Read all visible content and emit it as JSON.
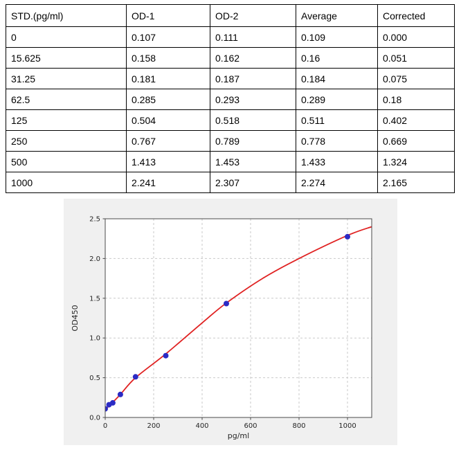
{
  "table": {
    "headers": [
      "STD.(pg/ml)",
      "OD-1",
      "OD-2",
      "Average",
      "Corrected"
    ],
    "rows": [
      [
        "0",
        "0.107",
        "0.111",
        "0.109",
        "0.000"
      ],
      [
        "15.625",
        "0.158",
        "0.162",
        "0.16",
        "0.051"
      ],
      [
        "31.25",
        "0.181",
        "0.187",
        "0.184",
        "0.075"
      ],
      [
        "62.5",
        "0.285",
        "0.293",
        "0.289",
        "0.18"
      ],
      [
        "125",
        "0.504",
        "0.518",
        "0.511",
        "0.402"
      ],
      [
        "250",
        "0.767",
        "0.789",
        "0.778",
        "0.669"
      ],
      [
        "500",
        "1.413",
        "1.453",
        "1.433",
        "1.324"
      ],
      [
        "1000",
        "2.241",
        "2.307",
        "2.274",
        "2.165"
      ]
    ]
  },
  "chart_data": {
    "type": "scatter",
    "title": "",
    "xlabel": "pg/ml",
    "ylabel": "OD450",
    "xlim": [
      0,
      1100
    ],
    "ylim": [
      0,
      2.5
    ],
    "x_ticks": [
      0,
      200,
      400,
      600,
      800,
      1000
    ],
    "y_ticks": [
      0.0,
      0.5,
      1.0,
      1.5,
      2.0,
      2.5
    ],
    "grid": "dashed-both-axes",
    "legend": "none",
    "series": [
      {
        "name": "standard-points",
        "type": "scatter",
        "color": "#2b2bc4",
        "x": [
          0,
          15.625,
          31.25,
          62.5,
          125,
          250,
          500,
          1000
        ],
        "y": [
          0.109,
          0.16,
          0.184,
          0.289,
          0.511,
          0.778,
          1.433,
          2.274
        ]
      },
      {
        "name": "fit-curve",
        "type": "line",
        "color": "#e02222",
        "x": [
          0,
          15.625,
          31.25,
          62.5,
          125,
          250,
          400,
          500,
          650,
          800,
          1000,
          1100
        ],
        "y": [
          0.1,
          0.145,
          0.19,
          0.29,
          0.5,
          0.8,
          1.19,
          1.44,
          1.75,
          2.0,
          2.29,
          2.4
        ]
      }
    ]
  },
  "colors": {
    "figure_background": "#f0f0f0",
    "plot_background": "#ffffff",
    "gridline": "#c9c9c9",
    "spine": "#4a4a4a",
    "point": "#2b2bc4",
    "curve": "#e02222",
    "table_border": "#000000",
    "text": "#000000"
  }
}
